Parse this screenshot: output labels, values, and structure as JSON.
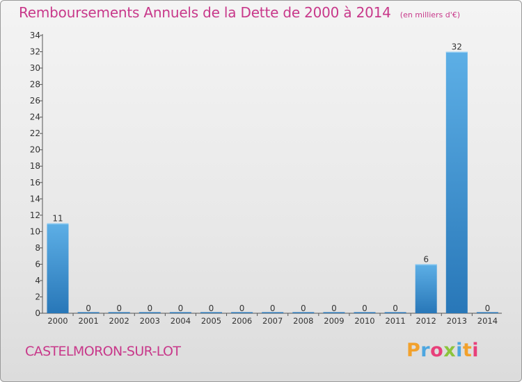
{
  "header": {
    "title": "Remboursements Annuels de la Dette de 2000 à 2014",
    "subtitle": "(en milliers d'€)"
  },
  "footer": {
    "commune": "CASTELMORON-SUR-LOT",
    "brand": "Proxiti"
  },
  "colors": {
    "accent": "#c8388a",
    "bar_top": "#5dafe6",
    "bar_bottom": "#2877b8",
    "brand_letters": [
      "#f2a12c",
      "#4da6e0",
      "#e8407a",
      "#8cc43c",
      "#4da6e0",
      "#f2a12c",
      "#e8407a"
    ]
  },
  "chart_data": {
    "type": "bar",
    "title": "Remboursements Annuels de la Dette de 2000 à 2014",
    "xlabel": "",
    "ylabel": "",
    "categories": [
      "2000",
      "2001",
      "2002",
      "2003",
      "2004",
      "2005",
      "2006",
      "2007",
      "2008",
      "2009",
      "2010",
      "2011",
      "2012",
      "2013",
      "2014"
    ],
    "values": [
      11,
      0,
      0,
      0,
      0,
      0,
      0,
      0,
      0,
      0,
      0,
      0,
      6,
      32,
      0
    ],
    "data_labels": [
      "11",
      "0",
      "0",
      "0",
      "0",
      "0",
      "0",
      "0",
      "0",
      "0",
      "0",
      "0",
      "6",
      "32",
      "0"
    ],
    "ylim": [
      0,
      34
    ],
    "yticks": [
      0,
      2,
      4,
      6,
      8,
      10,
      12,
      14,
      16,
      18,
      20,
      22,
      24,
      26,
      28,
      30,
      32,
      34
    ],
    "grid": false
  }
}
